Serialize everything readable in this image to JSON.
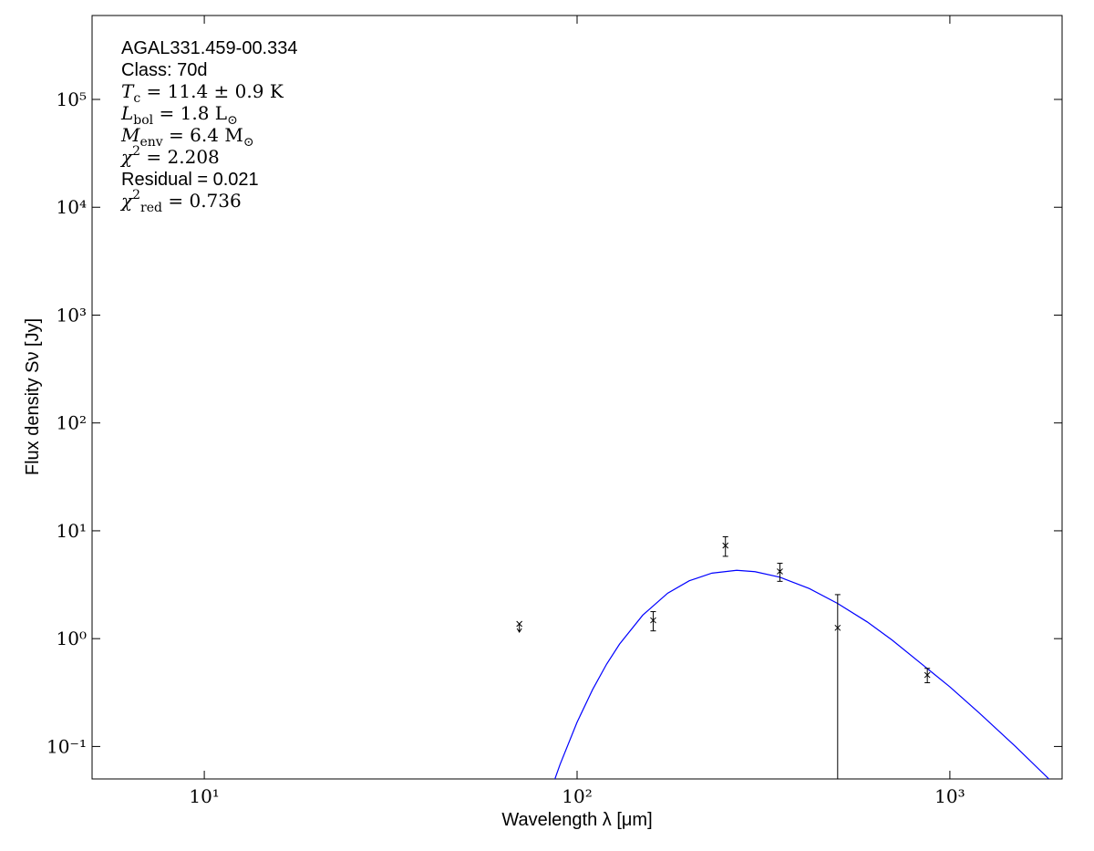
{
  "chart_data": {
    "type": "scatter",
    "xlabel": "Wavelength λ [μm]",
    "ylabel": "Flux density Sν [Jy]",
    "annotations": [
      {
        "parts": [
          [
            "AGAL331.459-00.334",
            "sans"
          ]
        ]
      },
      {
        "parts": [
          [
            "Class: 70d",
            "sans"
          ]
        ]
      },
      {
        "parts": [
          [
            "T",
            "i"
          ],
          [
            "c",
            "sub"
          ],
          [
            " = 11.4 ± 0.9 K",
            "r"
          ]
        ]
      },
      {
        "parts": [
          [
            "L",
            "i"
          ],
          [
            "bol",
            "sub"
          ],
          [
            " = 1.8 L",
            "r"
          ],
          [
            "⊙",
            "sub"
          ]
        ]
      },
      {
        "parts": [
          [
            "M",
            "i"
          ],
          [
            "env",
            "sub"
          ],
          [
            " = 6.4 M",
            "r"
          ],
          [
            "⊙",
            "sub"
          ]
        ]
      },
      {
        "parts": [
          [
            "χ",
            "i"
          ],
          [
            "2",
            "sup"
          ],
          [
            " = 2.208",
            "r"
          ]
        ]
      },
      {
        "parts": [
          [
            "Residual = 0.021",
            "sans"
          ]
        ]
      },
      {
        "parts": [
          [
            "χ",
            "i"
          ],
          [
            "2",
            "sup"
          ],
          [
            "red",
            "sub"
          ],
          [
            " = 0.736",
            "r"
          ]
        ]
      }
    ],
    "x": [
      70,
      160,
      250,
      350,
      500,
      870
    ],
    "values": [
      1.37,
      1.48,
      7.3,
      4.2,
      1.26,
      0.46
    ],
    "errors": [
      null,
      0.3,
      1.5,
      0.8,
      1.3,
      0.07
    ],
    "upper_limits": [
      true,
      false,
      false,
      false,
      false,
      false
    ],
    "color": "#000000",
    "model": {
      "x": [
        85,
        90,
        100,
        110,
        120,
        130,
        150,
        175,
        200,
        230,
        268,
        300,
        350,
        420,
        500,
        600,
        700,
        1000,
        1200,
        1500,
        2000
      ],
      "values": [
        0.039,
        0.068,
        0.168,
        0.336,
        0.58,
        0.89,
        1.65,
        2.64,
        3.44,
        4.05,
        4.3,
        4.18,
        3.71,
        2.91,
        2.12,
        1.43,
        0.97,
        0.357,
        0.204,
        0.1,
        0.038
      ],
      "color": "#0000ff"
    },
    "xscale": "log",
    "yscale": "log",
    "xlim": [
      5,
      2000
    ],
    "ylim": [
      0.05,
      600000
    ],
    "xticks": [
      {
        "value": 10,
        "label": "10¹"
      },
      {
        "value": 100,
        "label": "10²"
      },
      {
        "value": 1000,
        "label": "10³"
      }
    ],
    "yticks": [
      {
        "value": 0.1,
        "label": "10⁻¹"
      },
      {
        "value": 1,
        "label": "10⁰"
      },
      {
        "value": 10,
        "label": "10¹"
      },
      {
        "value": 100,
        "label": "10²"
      },
      {
        "value": 1000,
        "label": "10³"
      },
      {
        "value": 10000,
        "label": "10⁴"
      },
      {
        "value": 100000,
        "label": "10⁵"
      }
    ]
  }
}
